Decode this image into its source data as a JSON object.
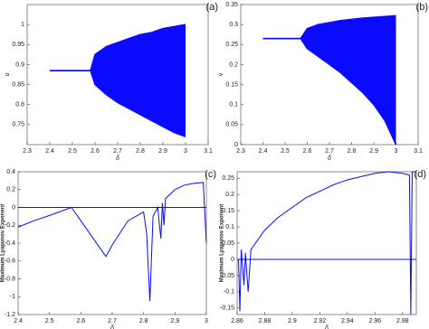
{
  "chart_data": [
    {
      "type": "band",
      "label": "(a)",
      "xlabel": "δ",
      "ylabel": "u",
      "color": "#0a0aff",
      "x": [
        2.4,
        2.5,
        2.58,
        2.6,
        2.65,
        2.7,
        2.75,
        2.8,
        2.85,
        2.9,
        2.95,
        3.0
      ],
      "series": [
        {
          "values": [
            0.885,
            0.885,
            0.885,
            0.925,
            0.945,
            0.955,
            0.965,
            0.975,
            0.98,
            0.99,
            0.995,
            1.0
          ]
        },
        {
          "values": [
            0.885,
            0.885,
            0.885,
            0.85,
            0.825,
            0.805,
            0.79,
            0.775,
            0.76,
            0.745,
            0.73,
            0.72
          ]
        }
      ],
      "xlim": [
        2.3,
        3.1
      ],
      "xticks": [
        2.3,
        2.4,
        2.5,
        2.6,
        2.7,
        2.8,
        2.9,
        3,
        3.1
      ],
      "ylim": [
        0.7,
        1.05
      ],
      "yticks": [
        0.75,
        0.8,
        0.85,
        0.9,
        0.95,
        1
      ]
    },
    {
      "type": "band",
      "label": "(b)",
      "xlabel": "δ",
      "ylabel": "v",
      "color": "#0a0aff",
      "x": [
        2.4,
        2.5,
        2.57,
        2.6,
        2.65,
        2.7,
        2.75,
        2.8,
        2.85,
        2.9,
        2.95,
        3.0
      ],
      "series": [
        {
          "values": [
            0.265,
            0.265,
            0.265,
            0.29,
            0.3,
            0.305,
            0.31,
            0.313,
            0.316,
            0.318,
            0.32,
            0.322
          ]
        },
        {
          "values": [
            0.265,
            0.265,
            0.265,
            0.24,
            0.22,
            0.2,
            0.18,
            0.155,
            0.13,
            0.1,
            0.06,
            0.0
          ]
        }
      ],
      "xlim": [
        2.3,
        3.1
      ],
      "xticks": [
        2.3,
        2.4,
        2.5,
        2.6,
        2.7,
        2.8,
        2.9,
        3,
        3.1
      ],
      "ylim": [
        0,
        0.35
      ],
      "yticks": [
        0,
        0.05,
        0.1,
        0.15,
        0.2,
        0.25,
        0.3,
        0.35
      ]
    },
    {
      "type": "line",
      "label": "(c)",
      "xlabel": "δ",
      "ylabel": "Maximum Lyapunov Exponent",
      "color": "#0a0aff",
      "reference": 0,
      "x": [
        2.4,
        2.45,
        2.5,
        2.57,
        2.62,
        2.66,
        2.68,
        2.7,
        2.75,
        2.8,
        2.81,
        2.82,
        2.83,
        2.845,
        2.855,
        2.86,
        2.865,
        2.87,
        2.9,
        2.93,
        2.96,
        2.99,
        3.0
      ],
      "series": [
        {
          "values": [
            -0.22,
            -0.15,
            -0.09,
            0.0,
            -0.25,
            -0.45,
            -0.55,
            -0.42,
            -0.15,
            -0.05,
            -0.3,
            -1.05,
            -0.1,
            0.0,
            -0.35,
            0.05,
            -0.2,
            0.1,
            0.2,
            0.25,
            0.27,
            0.28,
            -0.4
          ]
        }
      ],
      "xlim": [
        2.4,
        3
      ],
      "xticks": [
        2.4,
        2.5,
        2.6,
        2.7,
        2.8,
        2.9,
        3
      ],
      "ylim": [
        -1.2,
        0.4
      ],
      "yticks": [
        -1.2,
        -1,
        -0.8,
        -0.6,
        -0.4,
        -0.2,
        0,
        0.2,
        0.4
      ]
    },
    {
      "type": "line",
      "label": "(d)",
      "xlabel": "δ",
      "ylabel": "Maximum Lyapunov Exponent",
      "color": "#0a0aff",
      "reference": 0,
      "x": [
        2.861,
        2.862,
        2.863,
        2.865,
        2.866,
        2.868,
        2.87,
        2.88,
        2.89,
        2.9,
        2.91,
        2.92,
        2.93,
        2.94,
        2.95,
        2.96,
        2.97,
        2.98,
        2.985,
        2.986,
        2.987,
        2.99
      ],
      "series": [
        {
          "values": [
            0.0,
            -0.16,
            0.03,
            -0.08,
            0.02,
            -0.1,
            0.03,
            0.09,
            0.13,
            0.16,
            0.19,
            0.21,
            0.23,
            0.245,
            0.255,
            0.265,
            0.27,
            0.265,
            0.26,
            -0.17,
            0.27,
            0.27
          ]
        }
      ],
      "xlim": [
        2.86,
        2.99
      ],
      "xticks": [
        2.86,
        2.88,
        2.9,
        2.92,
        2.94,
        2.96,
        2.98
      ],
      "ylim": [
        -0.17,
        0.27
      ],
      "yticks": [
        -0.15,
        -0.1,
        -0.05,
        0,
        0.05,
        0.1,
        0.15,
        0.2,
        0.25
      ]
    }
  ]
}
